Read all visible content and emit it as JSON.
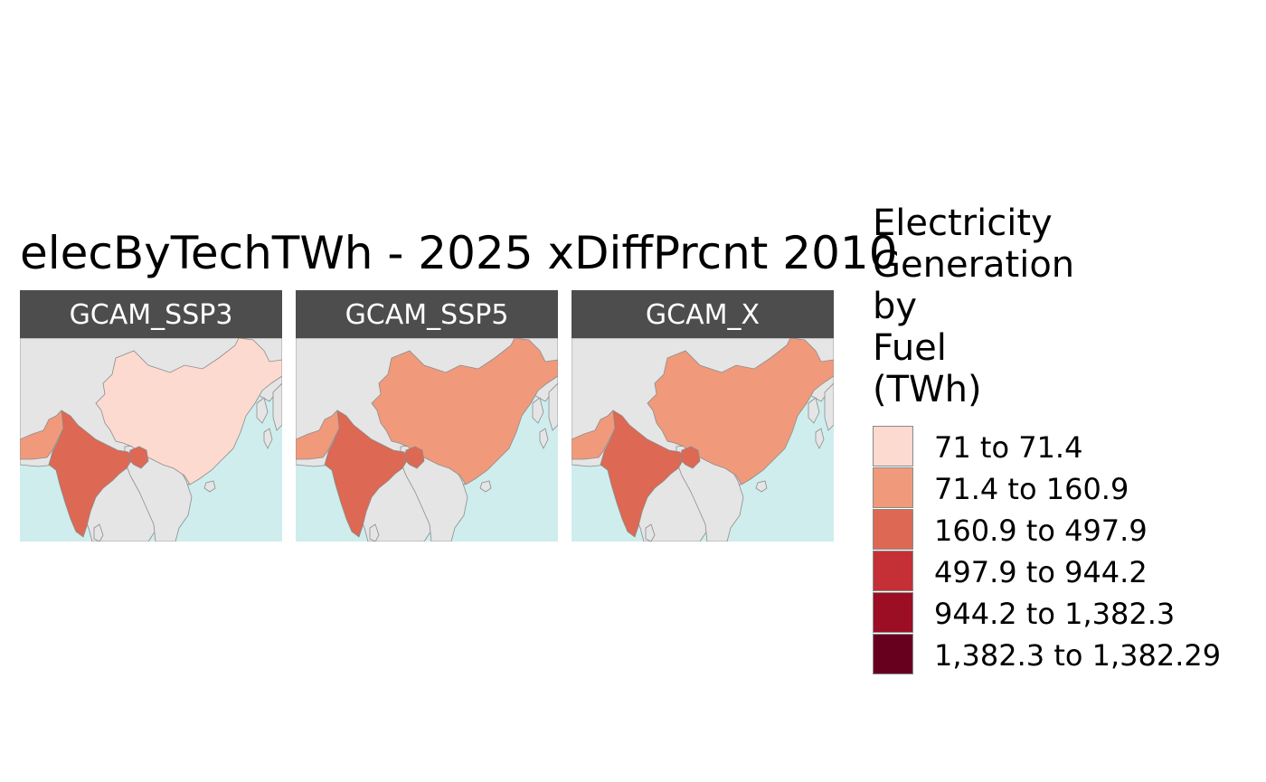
{
  "title": "elecByTechTWh - 2025 xDiffPrcnt 2010",
  "colors": {
    "ocean": "#cfeded",
    "land": "#e5e5e5",
    "border": "#8c8c8c",
    "strip": "#4d4d4d"
  },
  "panels": [
    {
      "label": "GCAM_SSP3",
      "china_class": 0,
      "india_class": 2,
      "pakistan_class": 1,
      "bangladesh_class": 2
    },
    {
      "label": "GCAM_SSP5",
      "china_class": 1,
      "india_class": 2,
      "pakistan_class": 1,
      "bangladesh_class": 2
    },
    {
      "label": "GCAM_X",
      "china_class": 1,
      "india_class": 2,
      "pakistan_class": 1,
      "bangladesh_class": 2
    }
  ],
  "legend": {
    "title_lines": [
      "Electricity",
      "Generation",
      "by",
      "Fuel",
      "(TWh)"
    ],
    "items": [
      {
        "label": "71 to 71.4",
        "color": "#fcdad0"
      },
      {
        "label": "71.4 to 160.9",
        "color": "#f09a7b"
      },
      {
        "label": "160.9 to 497.9",
        "color": "#dd6854"
      },
      {
        "label": "497.9 to 944.2",
        "color": "#c53037"
      },
      {
        "label": "944.2 to 1,382.3",
        "color": "#9c0e24"
      },
      {
        "label": "1,382.3 to 1,382.29",
        "color": "#67001f"
      }
    ]
  }
}
